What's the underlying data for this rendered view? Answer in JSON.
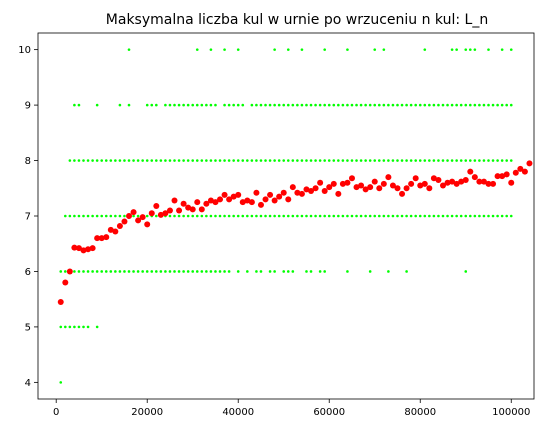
{
  "chart_data": {
    "type": "scatter",
    "title": "Maksymalna liczba kul w urnie po wrzuceniu n kul: L_n",
    "xlabel": "",
    "ylabel": "",
    "xlim": [
      -4000,
      105000
    ],
    "ylim": [
      3.7,
      10.3
    ],
    "xticks": [
      0,
      20000,
      40000,
      60000,
      80000,
      100000
    ],
    "xtick_labels": [
      "0",
      "20000",
      "40000",
      "60000",
      "80000",
      "100000"
    ],
    "yticks": [
      4,
      5,
      6,
      7,
      8,
      9,
      10
    ],
    "ytick_labels": [
      "4",
      "5",
      "6",
      "7",
      "8",
      "9",
      "10"
    ],
    "grid": false,
    "legend": "none",
    "n_step": 1000,
    "series": [
      {
        "kind": "observations",
        "color": "#00ff00",
        "marker_size": "small",
        "levels": [
          {
            "y": 4,
            "x": [
              1000
            ]
          },
          {
            "y": 5,
            "x": [
              1000,
              2000,
              3000,
              4000,
              5000,
              6000,
              7000,
              9000
            ]
          },
          {
            "y": 6,
            "x": [
              1000,
              2000,
              3000,
              4000,
              5000,
              6000,
              7000,
              8000,
              9000,
              10000,
              11000,
              12000,
              13000,
              14000,
              15000,
              16000,
              17000,
              18000,
              19000,
              20000,
              21000,
              22000,
              23000,
              24000,
              25000,
              26000,
              27000,
              28000,
              29000,
              30000,
              31000,
              32000,
              33000,
              34000,
              35000,
              36000,
              37000,
              38000,
              40000,
              42000,
              44000,
              45000,
              47000,
              48000,
              50000,
              51000,
              52000,
              55000,
              56000,
              58000,
              59000,
              64000,
              69000,
              73000,
              77000,
              90000
            ]
          },
          {
            "y": 7,
            "range": [
              2000,
              100000
            ]
          },
          {
            "y": 8,
            "range": [
              3000,
              100000
            ]
          },
          {
            "y": 9,
            "x": [
              4000,
              5000,
              9000,
              14000,
              16000,
              20000,
              21000,
              22000,
              24000,
              25000,
              26000,
              27000,
              28000,
              29000,
              30000,
              31000,
              32000,
              33000,
              34000,
              35000,
              37000,
              38000,
              39000,
              40000,
              41000,
              43000,
              44000,
              45000,
              46000,
              47000,
              48000,
              49000,
              50000,
              51000,
              52000,
              53000,
              54000,
              55000,
              56000,
              57000,
              58000,
              59000,
              60000,
              61000,
              62000,
              63000,
              64000,
              65000,
              66000,
              67000,
              68000,
              69000,
              70000,
              71000,
              72000,
              73000,
              74000,
              75000,
              76000,
              77000,
              78000,
              79000,
              80000,
              81000,
              82000,
              83000,
              84000,
              85000,
              86000,
              87000,
              88000,
              89000,
              90000,
              91000,
              92000,
              93000,
              94000,
              95000,
              96000,
              97000,
              98000,
              99000,
              100000
            ]
          },
          {
            "y": 10,
            "x": [
              16000,
              31000,
              34000,
              37000,
              40000,
              48000,
              51000,
              54000,
              59000,
              64000,
              70000,
              72000,
              81000,
              87000,
              88000,
              90000,
              91000,
              92000,
              95000,
              98000,
              100000
            ]
          }
        ]
      },
      {
        "kind": "mean",
        "color": "#ff0000",
        "marker_size": "large",
        "x_start": 1000,
        "x_step": 1000,
        "y": [
          5.45,
          5.8,
          6.0,
          6.43,
          6.42,
          6.38,
          6.4,
          6.42,
          6.6,
          6.6,
          6.62,
          6.75,
          6.72,
          6.82,
          6.9,
          7.0,
          7.07,
          6.92,
          6.98,
          6.85,
          7.05,
          7.18,
          7.02,
          7.05,
          7.1,
          7.28,
          7.1,
          7.22,
          7.15,
          7.12,
          7.25,
          7.12,
          7.22,
          7.28,
          7.25,
          7.3,
          7.38,
          7.3,
          7.35,
          7.38,
          7.25,
          7.28,
          7.25,
          7.42,
          7.2,
          7.3,
          7.38,
          7.28,
          7.35,
          7.42,
          7.3,
          7.52,
          7.42,
          7.4,
          7.48,
          7.45,
          7.5,
          7.6,
          7.45,
          7.52,
          7.58,
          7.4,
          7.58,
          7.6,
          7.68,
          7.52,
          7.55,
          7.48,
          7.52,
          7.62,
          7.5,
          7.58,
          7.7,
          7.55,
          7.5,
          7.4,
          7.5,
          7.58,
          7.68,
          7.55,
          7.58,
          7.5,
          7.68,
          7.65,
          7.55,
          7.6,
          7.62,
          7.58,
          7.62,
          7.65,
          7.8,
          7.7,
          7.62,
          7.62,
          7.58,
          7.58,
          7.72,
          7.72,
          7.75,
          7.6,
          7.78,
          7.85,
          7.8,
          7.95
        ]
      }
    ]
  }
}
